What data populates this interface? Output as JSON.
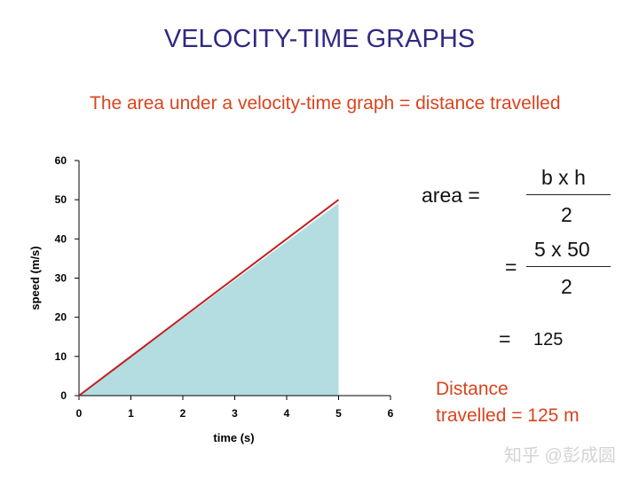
{
  "title": "VELOCITY-TIME GRAPHS",
  "subtitle": "The area under a velocity-time graph = distance travelled",
  "chart_data": {
    "type": "line",
    "x": [
      0,
      5
    ],
    "y": [
      0,
      50
    ],
    "xlabel": "time (s)",
    "ylabel": "speed (m/s)",
    "xlim": [
      0,
      6
    ],
    "ylim": [
      0,
      60
    ],
    "xticks": [
      0,
      1,
      2,
      3,
      4,
      5,
      6
    ],
    "yticks": [
      0,
      10,
      20,
      30,
      40,
      50,
      60
    ],
    "shaded_area": {
      "x_from": 0,
      "x_to": 5
    },
    "grid": false,
    "colors": {
      "line": "#c41e1e",
      "area": "#b3dde1",
      "axis": "#000000"
    }
  },
  "formula": {
    "area_label": "area =",
    "numerator1": "b x h",
    "denominator1": "2",
    "equals2": "=",
    "numerator2": "5 x 50",
    "denominator2": "2",
    "equals3": "=",
    "value": "125"
  },
  "result": {
    "line1": "Distance",
    "line2": "travelled = 125 m"
  },
  "watermark": "知乎 @彭成圆"
}
